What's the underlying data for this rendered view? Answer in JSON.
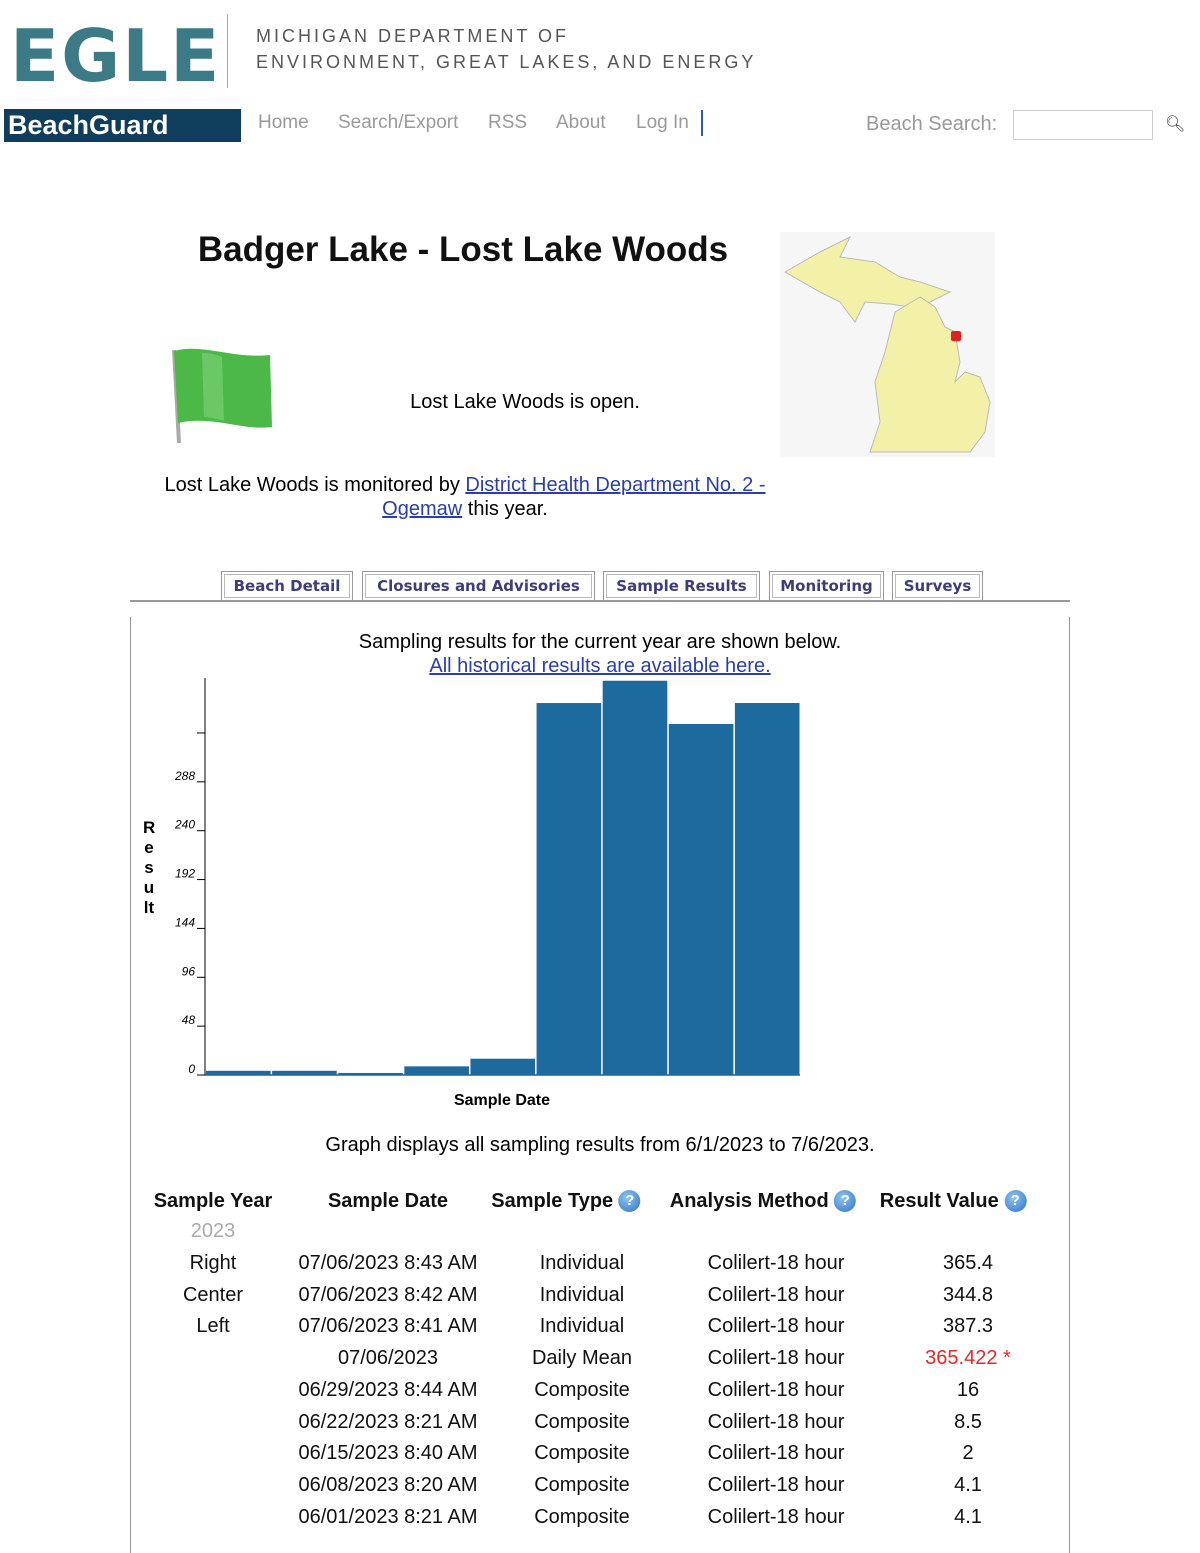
{
  "header": {
    "logo": "EGLE",
    "agency_line1": "MICHIGAN DEPARTMENT OF",
    "agency_line2": "ENVIRONMENT, GREAT LAKES, AND ENERGY",
    "brand": "BeachGuard"
  },
  "nav": [
    "Home",
    "Search/Export",
    "RSS",
    "About",
    "Log In"
  ],
  "search_label": "Beach Search:",
  "title": "Badger Lake - Lost Lake Woods",
  "status": "Lost Lake Woods is open.",
  "monitored": {
    "before": "Lost Lake Woods is monitored by",
    "link": "District Health Department No. 2 - Ogemaw",
    "after": "this year."
  },
  "tabs": [
    "Beach Detail",
    "Closures and Advisories",
    "Sample Results",
    "Monitoring",
    "Surveys"
  ],
  "intro": "Sampling results for the current year are shown below.",
  "historical_link": "All historical results are available here.",
  "chart_data": {
    "type": "bar",
    "ylabel": "Result",
    "xlabel": "Sample Date",
    "categories": [
      null,
      null,
      null,
      null,
      null,
      null,
      null,
      null,
      null
    ],
    "values": [
      4.1,
      4.1,
      2,
      8.5,
      16,
      365.4,
      387.3,
      344.8,
      365.422
    ],
    "color": "#1d6a9e",
    "ylim": [
      0,
      390
    ],
    "yticks": [
      0,
      48,
      96,
      144,
      192,
      240,
      288,
      {
        "value": 336,
        "label": null
      }
    ]
  },
  "graph_note": "Graph displays all sampling results from 6/1/2023 to 7/6/2023.",
  "table": {
    "columns": [
      "Sample Year",
      "Sample Date",
      "Sample Type",
      "Analysis Method",
      "Result Value"
    ],
    "year": "2023",
    "rows": [
      {
        "location": "Right",
        "date": "07/06/2023 8:43 AM",
        "type": "Individual",
        "method": "Colilert-18 hour",
        "value": "365.4"
      },
      {
        "location": "Center",
        "date": "07/06/2023 8:42 AM",
        "type": "Individual",
        "method": "Colilert-18 hour",
        "value": "344.8"
      },
      {
        "location": "Left",
        "date": "07/06/2023 8:41 AM",
        "type": "Individual",
        "method": "Colilert-18 hour",
        "value": "387.3"
      },
      {
        "date": "07/06/2023",
        "type": "Daily Mean",
        "method": "Colilert-18 hour",
        "value": "365.422 *"
      },
      {
        "date": "06/29/2023 8:44 AM",
        "type": "Composite",
        "method": "Colilert-18 hour",
        "value": "16"
      },
      {
        "date": "06/22/2023 8:21 AM",
        "type": "Composite",
        "method": "Colilert-18 hour",
        "value": "8.5"
      },
      {
        "date": "06/15/2023 8:40 AM",
        "type": "Composite",
        "method": "Colilert-18 hour",
        "value": "2"
      },
      {
        "date": "06/08/2023 8:20 AM",
        "type": "Composite",
        "method": "Colilert-18 hour",
        "value": "4.1"
      },
      {
        "date": "06/01/2023 8:21 AM",
        "type": "Composite",
        "method": "Colilert-18 hour",
        "value": "4.1"
      }
    ]
  }
}
